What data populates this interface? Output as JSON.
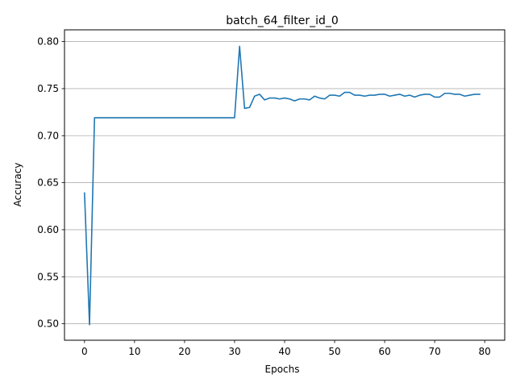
{
  "chart_data": {
    "type": "line",
    "title": "batch_64_filter_id_0",
    "xlabel": "Epochs",
    "ylabel": "Accuracy",
    "xlim": [
      -4,
      84
    ],
    "ylim": [
      0.4825,
      0.8125
    ],
    "xticks": [
      0,
      10,
      20,
      30,
      40,
      50,
      60,
      70,
      80
    ],
    "xtick_labels": [
      "0",
      "10",
      "20",
      "30",
      "40",
      "50",
      "60",
      "70",
      "80"
    ],
    "yticks": [
      0.5,
      0.55,
      0.6,
      0.65,
      0.7,
      0.75,
      0.8
    ],
    "ytick_labels": [
      "0.50",
      "0.55",
      "0.60",
      "0.65",
      "0.70",
      "0.75",
      "0.80"
    ],
    "grid": "horizontal",
    "series": [
      {
        "color": "#1f77b4",
        "x": [
          0,
          1,
          2,
          3,
          4,
          5,
          6,
          7,
          8,
          9,
          10,
          11,
          12,
          13,
          14,
          15,
          16,
          17,
          18,
          19,
          20,
          21,
          22,
          23,
          24,
          25,
          26,
          27,
          28,
          29,
          30,
          31,
          32,
          33,
          34,
          35,
          36,
          37,
          38,
          39,
          40,
          41,
          42,
          43,
          44,
          45,
          46,
          47,
          48,
          49,
          50,
          51,
          52,
          53,
          54,
          55,
          56,
          57,
          58,
          59,
          60,
          61,
          62,
          63,
          64,
          65,
          66,
          67,
          68,
          69,
          70,
          71,
          72,
          73,
          74,
          75,
          76,
          77,
          78,
          79
        ],
        "values": [
          0.639,
          0.499,
          0.719,
          0.719,
          0.719,
          0.719,
          0.719,
          0.719,
          0.719,
          0.719,
          0.719,
          0.719,
          0.719,
          0.719,
          0.719,
          0.719,
          0.719,
          0.719,
          0.719,
          0.719,
          0.719,
          0.719,
          0.719,
          0.719,
          0.719,
          0.719,
          0.719,
          0.719,
          0.719,
          0.719,
          0.719,
          0.795,
          0.729,
          0.73,
          0.742,
          0.744,
          0.738,
          0.74,
          0.74,
          0.739,
          0.74,
          0.739,
          0.737,
          0.739,
          0.739,
          0.738,
          0.742,
          0.74,
          0.739,
          0.743,
          0.743,
          0.742,
          0.746,
          0.746,
          0.743,
          0.743,
          0.742,
          0.743,
          0.743,
          0.744,
          0.744,
          0.742,
          0.743,
          0.744,
          0.742,
          0.743,
          0.741,
          0.743,
          0.744,
          0.744,
          0.741,
          0.741,
          0.745,
          0.745,
          0.744,
          0.744,
          0.742,
          0.743,
          0.744,
          0.744
        ]
      }
    ]
  }
}
